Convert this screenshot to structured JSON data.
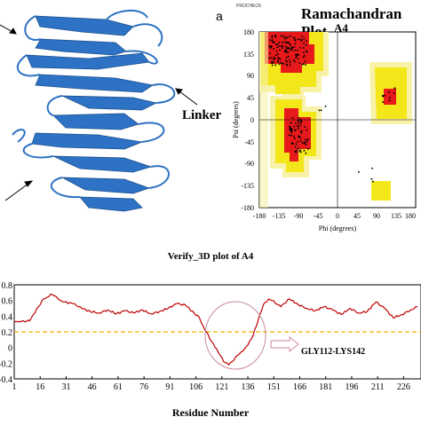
{
  "panel_a_label": "a",
  "protein": {
    "linker_label": "Linker"
  },
  "ramachandran": {
    "header": "PROCHECK",
    "title": "Ramachandran Plot",
    "subtitle": "A4",
    "xlabel": "Phi (degrees)",
    "ylabel": "Psi (degrees)",
    "xticks": [
      "-180",
      "-135",
      "-90",
      "-45",
      "0",
      "45",
      "90",
      "135",
      "180"
    ],
    "yticks": [
      "180",
      "135",
      "90",
      "45",
      "0",
      "-45",
      "-90",
      "-135",
      "-180"
    ],
    "colors": {
      "core": "#e8191b",
      "allowed": "#f3e619",
      "generous": "#f7f2a8"
    }
  },
  "chart_data": {
    "type": "line",
    "title": "Verify_3D plot of A4",
    "xlabel": "Residue Number",
    "ylabel": "",
    "xlim": [
      1,
      234
    ],
    "ylim": [
      -0.4,
      0.8
    ],
    "xticks": [
      "1",
      "16",
      "31",
      "46",
      "61",
      "76",
      "91",
      "106",
      "121",
      "136",
      "151",
      "166",
      "181",
      "196",
      "211",
      "226"
    ],
    "yticks": [
      "0.8",
      "0.6",
      "0.4",
      "0.2",
      "0",
      "-0.2",
      "-0.4"
    ],
    "threshold": 0.2,
    "annotation": "GLY112-LYS142",
    "series": [
      {
        "x": [
          1,
          5,
          10,
          12,
          15,
          18,
          20,
          22,
          24,
          26,
          28,
          30,
          35,
          40,
          45,
          50,
          55,
          60,
          65,
          70,
          75,
          80,
          85,
          90,
          95,
          100,
          105,
          108,
          110,
          112,
          115,
          118,
          120,
          122,
          125,
          128,
          130,
          133,
          136,
          139,
          142,
          145,
          148,
          150,
          155,
          160,
          165,
          170,
          175,
          180,
          185,
          190,
          195,
          200,
          205,
          210,
          215,
          220,
          225,
          230,
          234
        ],
        "y": [
          0.33,
          0.33,
          0.34,
          0.42,
          0.52,
          0.62,
          0.64,
          0.68,
          0.66,
          0.63,
          0.6,
          0.58,
          0.56,
          0.5,
          0.46,
          0.44,
          0.48,
          0.43,
          0.47,
          0.44,
          0.48,
          0.43,
          0.46,
          0.5,
          0.56,
          0.54,
          0.44,
          0.38,
          0.28,
          0.2,
          0.08,
          -0.02,
          -0.1,
          -0.18,
          -0.22,
          -0.16,
          -0.1,
          -0.05,
          0.03,
          0.15,
          0.35,
          0.55,
          0.62,
          0.6,
          0.52,
          0.62,
          0.55,
          0.5,
          0.47,
          0.52,
          0.48,
          0.42,
          0.5,
          0.44,
          0.46,
          0.58,
          0.5,
          0.38,
          0.42,
          0.48,
          0.52
        ],
        "color": "#c00000"
      }
    ]
  }
}
